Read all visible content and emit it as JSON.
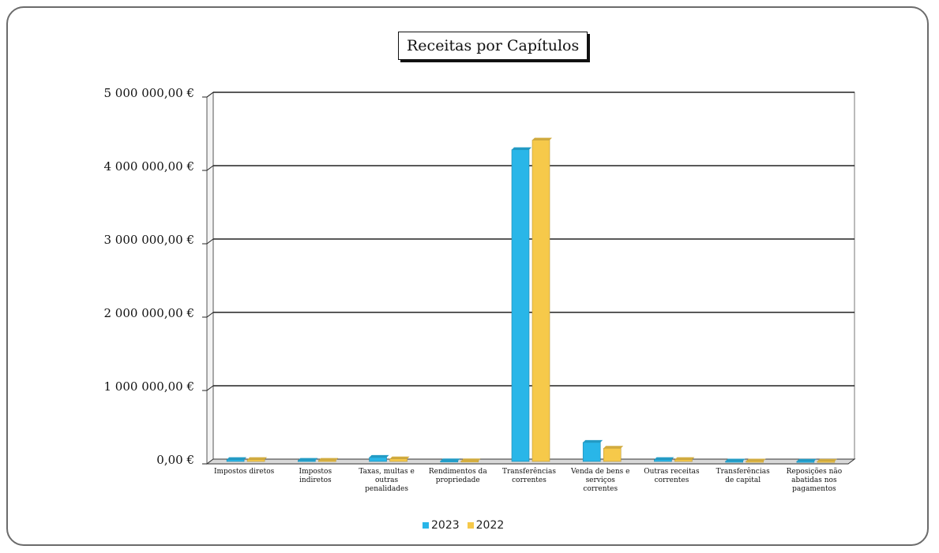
{
  "colors": {
    "series_2023": "#29b6e8",
    "series_2022": "#f6c94a",
    "grid": "#222222",
    "text": "#111111"
  },
  "chart_data": {
    "type": "bar",
    "title": "Receitas por Capítulos",
    "xlabel": "",
    "ylabel": "",
    "ylim": [
      0,
      5000000
    ],
    "ytick_values": [
      0,
      1000000,
      2000000,
      3000000,
      4000000,
      5000000
    ],
    "ytick_labels": [
      "0,00 €",
      "1 000 000,00 €",
      "2 000 000,00 €",
      "3 000 000,00 €",
      "4 000 000,00 €",
      "5 000 000,00 €"
    ],
    "categories": [
      "Impostos diretos",
      "Impostos indiretos",
      "Taxas, multas e outras penalidades",
      "Rendimentos da propriedade",
      "Transferências correntes",
      "Venda de bens e serviços correntes",
      "Outras receitas correntes",
      "Transferências de capital",
      "Reposições não abatidas nos pagamentos"
    ],
    "series": [
      {
        "name": "2023",
        "values": [
          25000,
          15000,
          55000,
          8000,
          4250000,
          260000,
          25000,
          5000,
          3000
        ]
      },
      {
        "name": "2022",
        "values": [
          25000,
          15000,
          35000,
          8000,
          4380000,
          180000,
          25000,
          5000,
          3000
        ]
      }
    ],
    "legend_position": "bottom",
    "grid": true
  }
}
